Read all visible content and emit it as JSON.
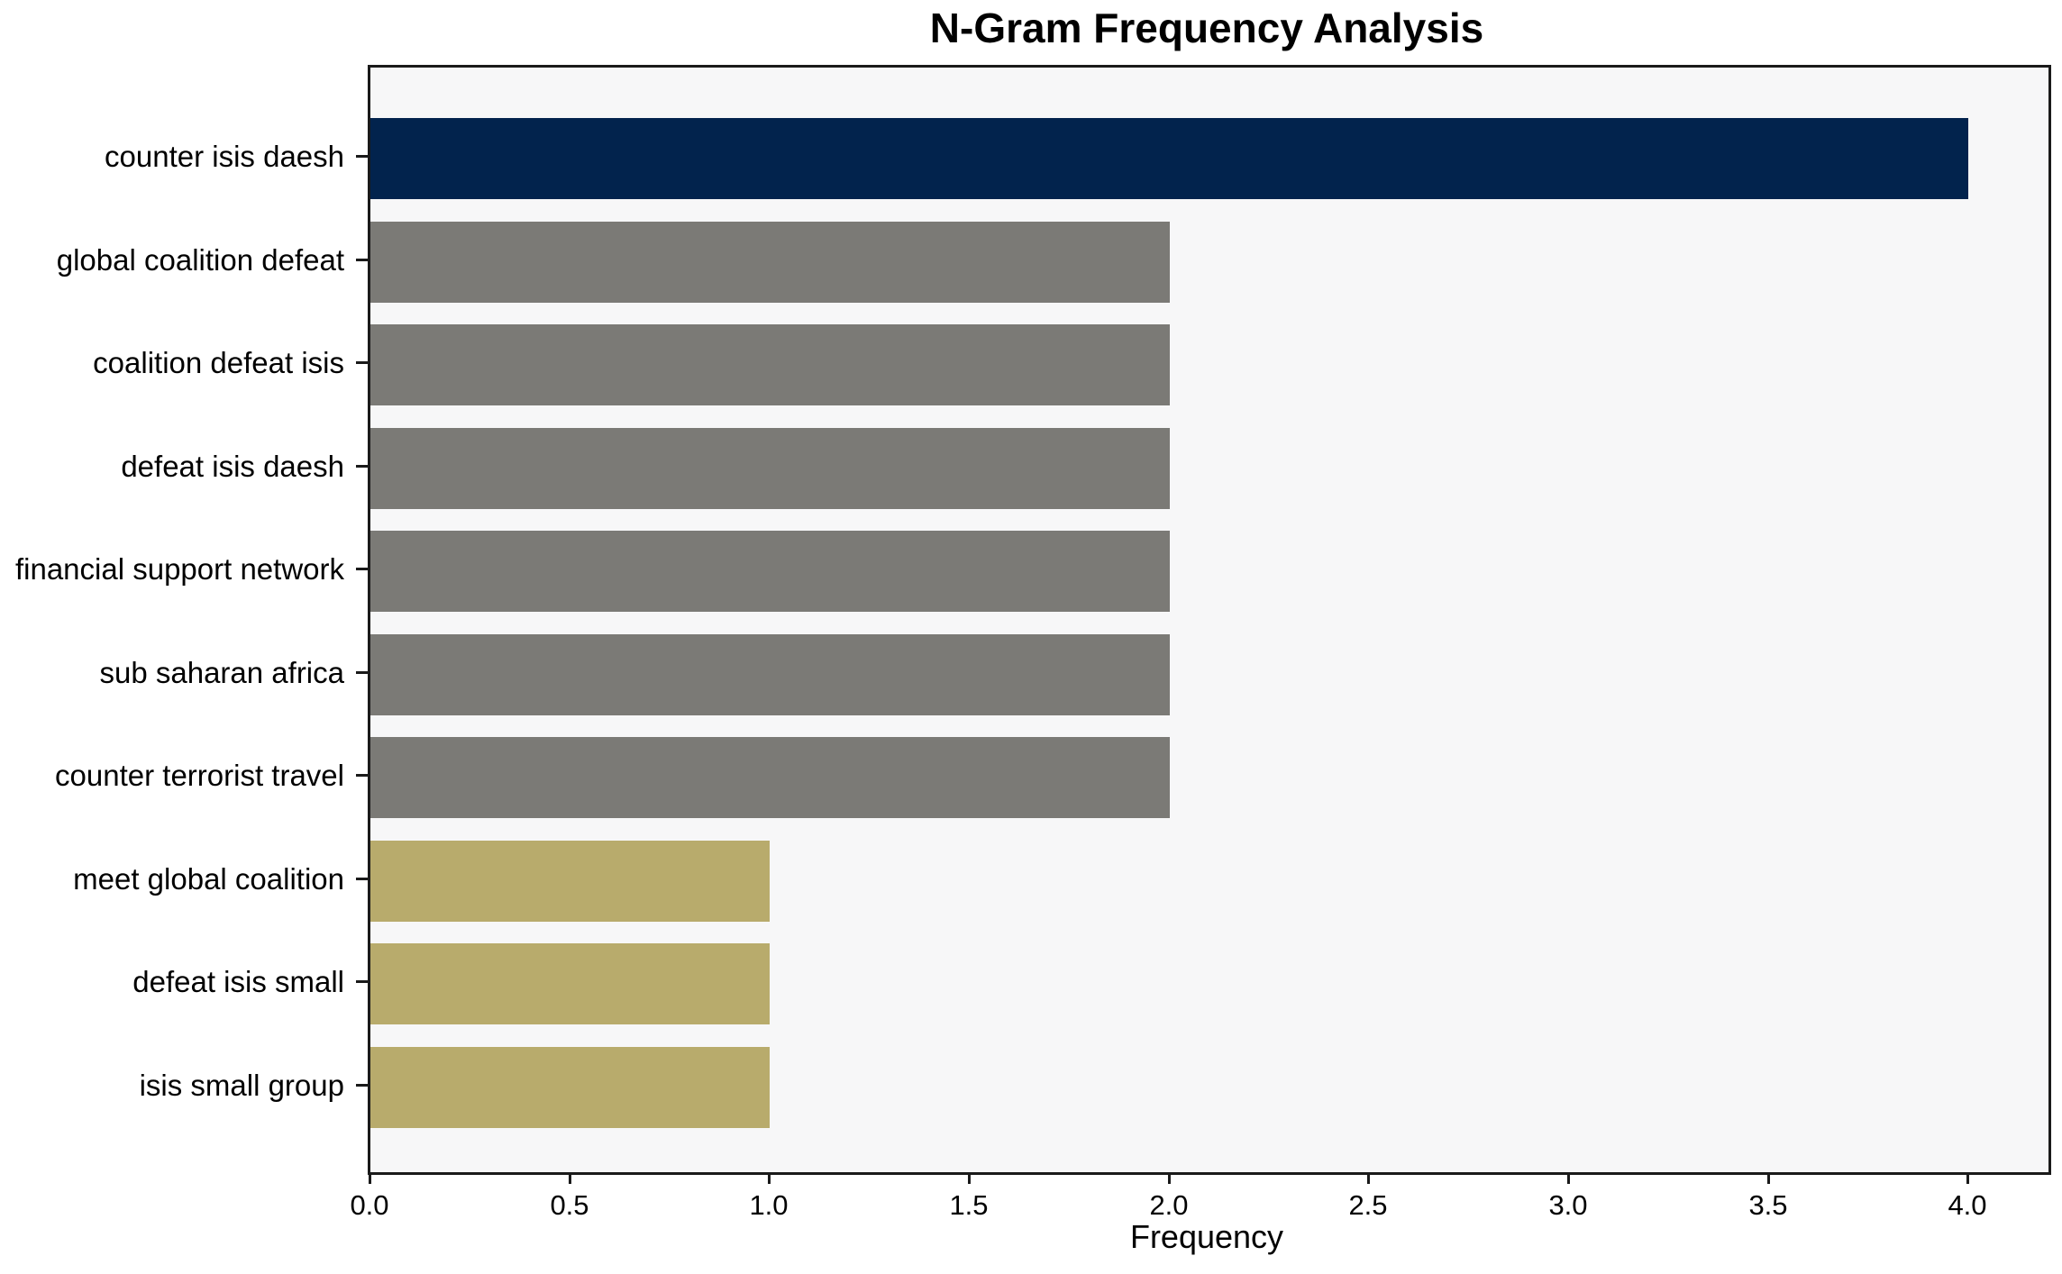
{
  "chart_data": {
    "type": "bar",
    "orientation": "horizontal",
    "title": "N-Gram Frequency Analysis",
    "xlabel": "Frequency",
    "ylabel": "",
    "categories": [
      "counter isis daesh",
      "global coalition defeat",
      "coalition defeat isis",
      "defeat isis daesh",
      "financial support network",
      "sub saharan africa",
      "counter terrorist travel",
      "meet global coalition",
      "defeat isis small",
      "isis small group"
    ],
    "values": [
      4,
      2,
      2,
      2,
      2,
      2,
      2,
      1,
      1,
      1
    ],
    "bar_colors": [
      "#02234d",
      "#7b7a76",
      "#7b7a76",
      "#7b7a76",
      "#7b7a76",
      "#7b7a76",
      "#7b7a76",
      "#b8ab6c",
      "#b8ab6c",
      "#b8ab6c"
    ],
    "xlim": [
      0,
      4.2
    ],
    "xticks": [
      0.0,
      0.5,
      1.0,
      1.5,
      2.0,
      2.5,
      3.0,
      3.5,
      4.0
    ],
    "xtick_labels": [
      "0.0",
      "0.5",
      "1.0",
      "1.5",
      "2.0",
      "2.5",
      "3.0",
      "3.5",
      "4.0"
    ],
    "grid": false,
    "legend": null,
    "colors": {
      "figure_bg": "#ffffff",
      "plot_bg": "#f7f7f8",
      "spine": "#1a1a1a",
      "text": "#000000"
    }
  }
}
